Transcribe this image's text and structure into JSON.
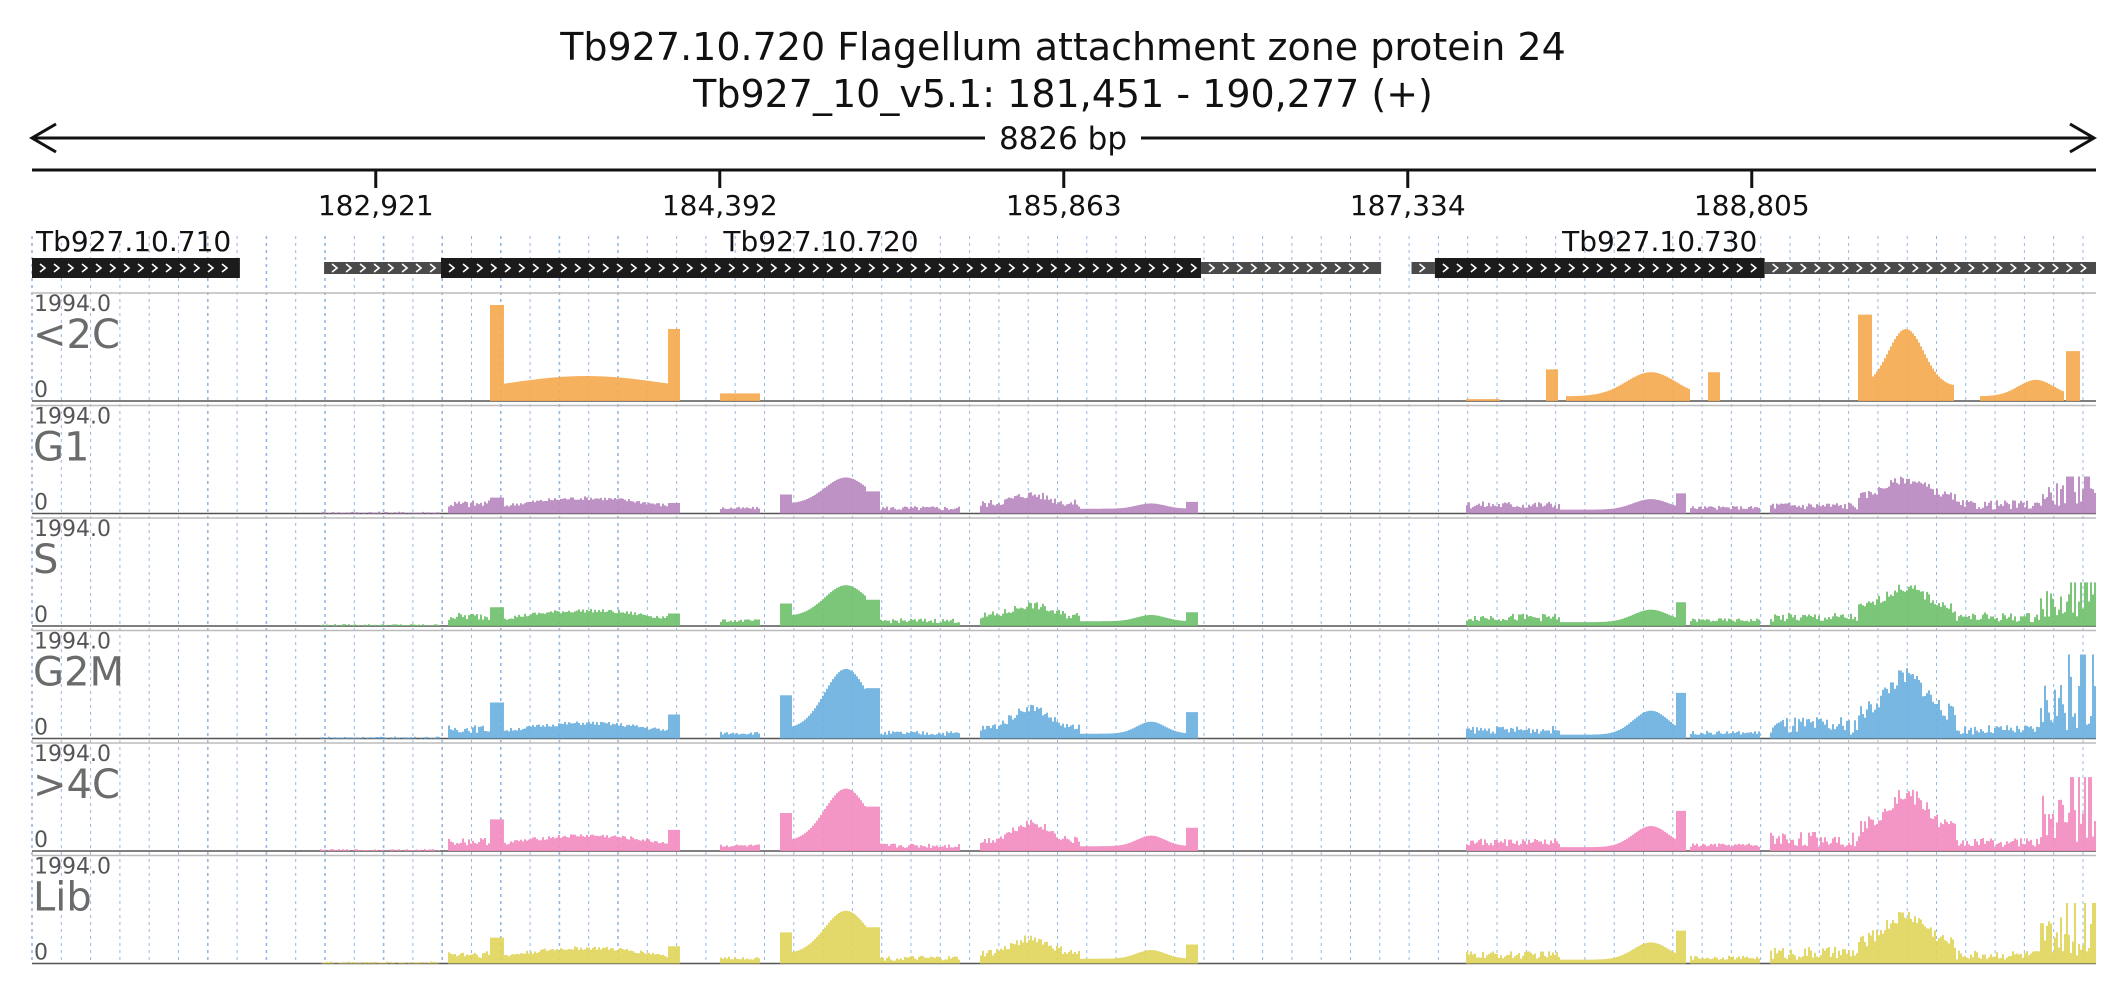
{
  "header": {
    "title": "Tb927.10.720  Flagellum attachment zone protein 24",
    "location": "Tb927_10_v5.1: 181,451 - 190,277 (+)",
    "span": "8826 bp"
  },
  "region": {
    "start": 181451,
    "end": 190277,
    "strand": "+"
  },
  "ruler": {
    "ticks": [
      {
        "pos": 182921,
        "label": "182,921"
      },
      {
        "pos": 184392,
        "label": "184,392"
      },
      {
        "pos": 185863,
        "label": "185,863"
      },
      {
        "pos": 187334,
        "label": "187,334"
      },
      {
        "pos": 188805,
        "label": "188,805"
      }
    ]
  },
  "genes": [
    {
      "name": "Tb927.10.710",
      "utr5": null,
      "cds": [
        181451,
        182340
      ],
      "utr3": null
    },
    {
      "name": "Tb927.10.720",
      "utr5": [
        182700,
        183200
      ],
      "cds": [
        183200,
        186450
      ],
      "utr3": [
        186450,
        187220
      ]
    },
    {
      "name": "Tb927.10.730",
      "utr5": [
        187350,
        187450
      ],
      "cds": [
        187450,
        188860
      ],
      "utr3": [
        188860,
        190277
      ]
    }
  ],
  "tracks": [
    {
      "name": "<2C",
      "scale_max": "1994.0",
      "scale_min": "0",
      "color": "#f5a94e"
    },
    {
      "name": "G1",
      "scale_max": "1994.0",
      "scale_min": "0",
      "color": "#b886bf"
    },
    {
      "name": "S",
      "scale_max": "1994.0",
      "scale_min": "0",
      "color": "#6ec06b"
    },
    {
      "name": "G2M",
      "scale_max": "1994.0",
      "scale_min": "0",
      "color": "#6aafe0"
    },
    {
      "name": ">4C",
      "scale_max": "1994.0",
      "scale_min": "0",
      "color": "#f28bbf"
    },
    {
      "name": "Lib",
      "scale_max": "1994.0",
      "scale_min": "0",
      "color": "#e0d45a"
    }
  ],
  "colors": {
    "cds": "#1b1b1b",
    "utr": "#4a4a4a",
    "grid": "#7aa7d9",
    "axis": "#111111"
  }
}
